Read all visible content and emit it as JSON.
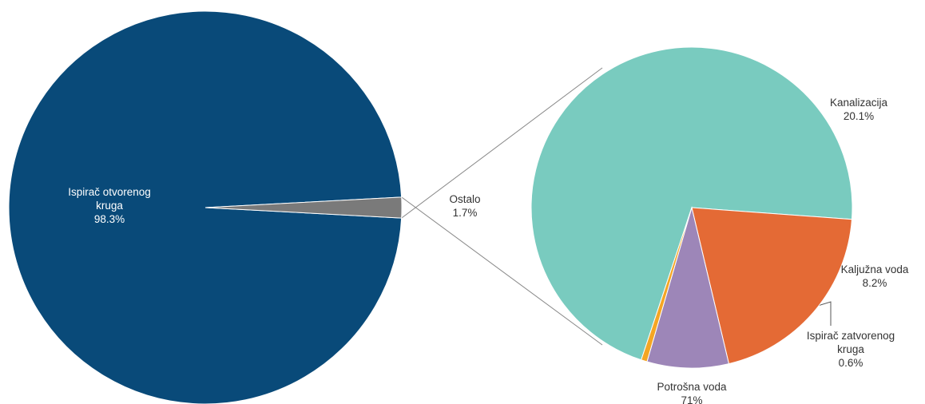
{
  "chart_data": [
    {
      "type": "pie",
      "title": "",
      "slices": [
        {
          "label": "Ispirač otvorenog kruga",
          "label_lines": [
            "Ispirač otvorenog",
            "kruga"
          ],
          "value": 98.3,
          "value_label": "98.3%",
          "color": "#094a79"
        },
        {
          "label": "Ostalo",
          "label_lines": [
            "Ostalo"
          ],
          "value": 1.7,
          "value_label": "1.7%",
          "color": "#7a7a7a"
        }
      ]
    },
    {
      "type": "pie",
      "title": "",
      "breakdown_of": "Ostalo",
      "slices": [
        {
          "label": "Potrošna voda",
          "label_lines": [
            "Potrošna voda"
          ],
          "value": 71,
          "value_label": "71%",
          "color": "#79cbbf"
        },
        {
          "label": "Kanalizacija",
          "label_lines": [
            "Kanalizacija"
          ],
          "value": 20.1,
          "value_label": "20.1%",
          "color": "#e46a35"
        },
        {
          "label": "Kaljužna voda",
          "label_lines": [
            "Kaljužna voda"
          ],
          "value": 8.2,
          "value_label": "8.2%",
          "color": "#9d86b8"
        },
        {
          "label": "Ispirač zatvorenog kruga",
          "label_lines": [
            "Ispirač zatvorenog",
            "kruga"
          ],
          "value": 0.6,
          "value_label": "0.6%",
          "color": "#f5a623"
        }
      ]
    }
  ]
}
